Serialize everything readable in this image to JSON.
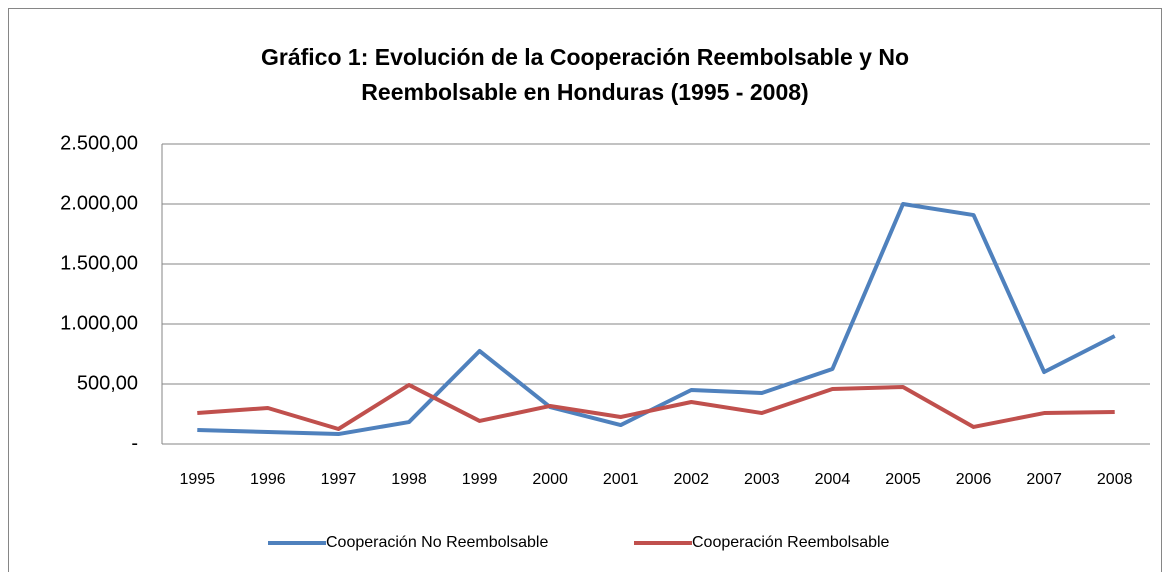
{
  "chart_data": {
    "type": "line",
    "title": "Gráfico 1: Evolución de la Cooperación Reembolsable y No Reembolsable en Honduras (1995 - 2008)",
    "categories": [
      "1995",
      "1996",
      "1997",
      "1998",
      "1999",
      "2000",
      "2001",
      "2002",
      "2003",
      "2004",
      "2005",
      "2006",
      "2007",
      "2008"
    ],
    "series": [
      {
        "name": "Cooperación No Reembolsable",
        "color": "#4f81bd",
        "values": [
          117,
          100,
          83,
          183,
          775,
          308,
          158,
          450,
          425,
          625,
          2000,
          1908,
          600,
          900
        ]
      },
      {
        "name": "Cooperación Reembolsable",
        "color": "#c0504d",
        "values": [
          258,
          300,
          125,
          492,
          192,
          317,
          225,
          350,
          258,
          458,
          475,
          142,
          258,
          267
        ]
      }
    ],
    "ylim": [
      0,
      2500
    ],
    "yticks": [
      {
        "value": 0,
        "label": "-"
      },
      {
        "value": 500,
        "label": "500,00"
      },
      {
        "value": 1000,
        "label": "1.000,00"
      },
      {
        "value": 1500,
        "label": "1.500,00"
      },
      {
        "value": 2000,
        "label": "2.000,00"
      },
      {
        "value": 2500,
        "label": "2.500,00"
      }
    ],
    "grid": true,
    "legend": "bottom"
  }
}
